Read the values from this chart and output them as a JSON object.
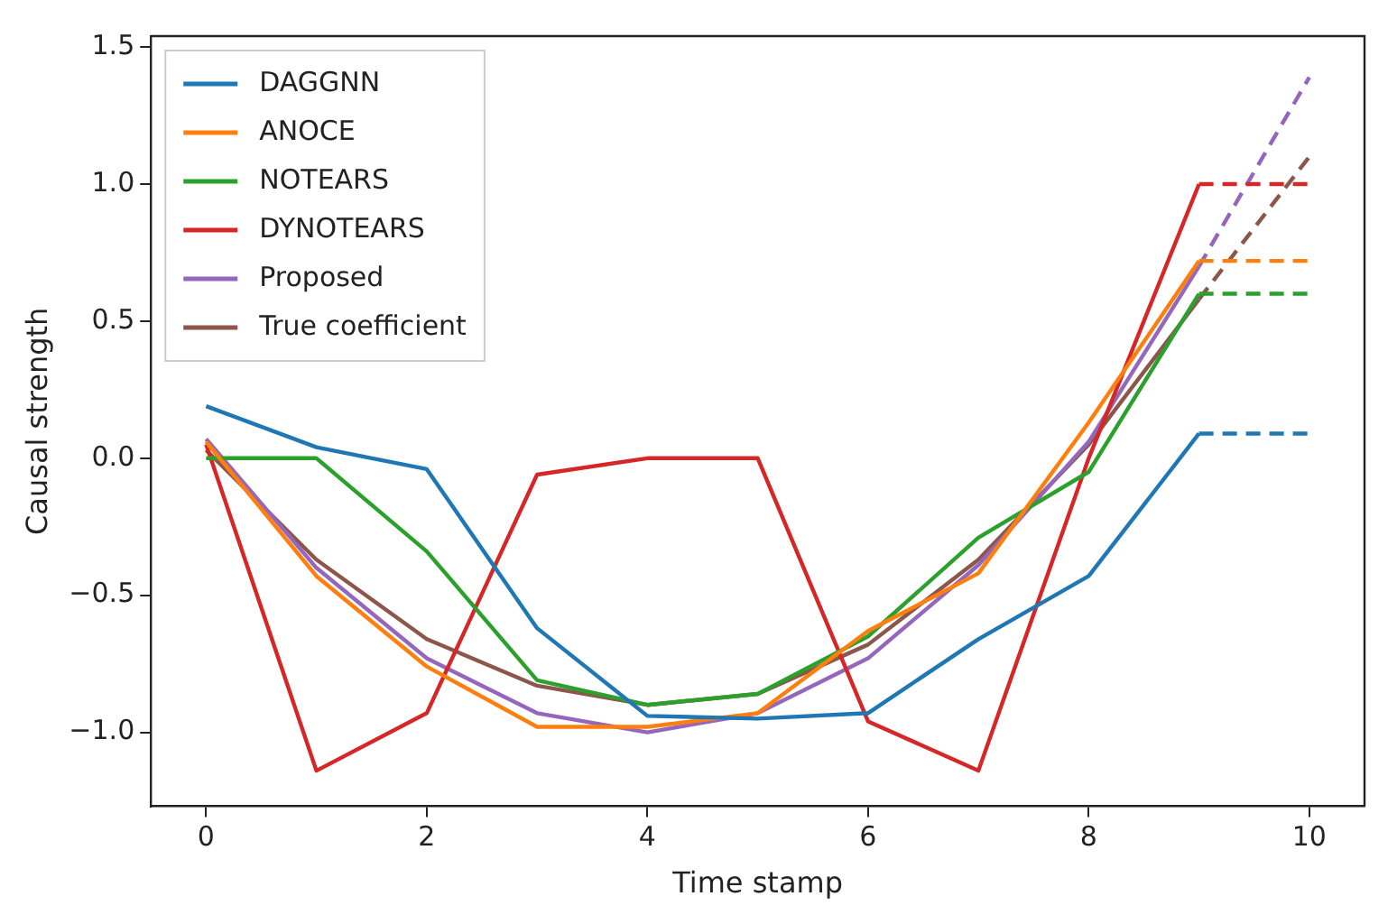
{
  "chart_data": {
    "type": "line",
    "xlabel": "Time stamp",
    "ylabel": "Causal strength",
    "xlim": [
      -0.5,
      10.5
    ],
    "ylim": [
      -1.27,
      1.54
    ],
    "xticks": [
      0,
      2,
      4,
      6,
      8,
      10
    ],
    "yticks": [
      {
        "value": -1,
        "label": "−1.0"
      },
      {
        "value": -0.5,
        "label": "−0.5"
      },
      {
        "value": 0,
        "label": "0.0"
      },
      {
        "value": 0.5,
        "label": "0.5"
      },
      {
        "value": 1,
        "label": "1.0"
      },
      {
        "value": 1.5,
        "label": "1.5"
      }
    ],
    "grid": false,
    "legend": "top left",
    "marker": "none",
    "series": [
      {
        "name": "DAGGNN",
        "color": "#1f77b4",
        "x": [
          0,
          1,
          2,
          3,
          4,
          5,
          6,
          7,
          8,
          9
        ],
        "values": [
          0.19,
          0.04,
          -0.04,
          -0.62,
          -0.94,
          -0.95,
          -0.93,
          -0.66,
          -0.43,
          0.09
        ],
        "line_style": "solid"
      },
      {
        "name": "ANOCE",
        "color": "#ff7f0e",
        "x": [
          0,
          1,
          2,
          3,
          4,
          5,
          6,
          7,
          8,
          9
        ],
        "values": [
          0.06,
          -0.43,
          -0.76,
          -0.98,
          -0.98,
          -0.93,
          -0.63,
          -0.42,
          0.13,
          0.72
        ],
        "line_style": "solid"
      },
      {
        "name": "NOTEARS",
        "color": "#2ca02c",
        "x": [
          0,
          1,
          2,
          3,
          4,
          5,
          6,
          7,
          8,
          9
        ],
        "values": [
          0,
          0,
          -0.34,
          -0.81,
          -0.9,
          -0.86,
          -0.65,
          -0.29,
          -0.05,
          0.6
        ],
        "line_style": "solid"
      },
      {
        "name": "DYNOTEARS",
        "color": "#d62728",
        "x": [
          0,
          1,
          2,
          3,
          4,
          5,
          6,
          7,
          8,
          9
        ],
        "values": [
          0.05,
          -1.14,
          -0.93,
          -0.06,
          0,
          0,
          -0.96,
          -1.14,
          0,
          1.0
        ],
        "line_style": "solid"
      },
      {
        "name": "Proposed",
        "color": "#9467bd",
        "x": [
          0,
          1,
          2,
          3,
          4,
          5,
          6,
          7,
          8,
          9
        ],
        "values": [
          0.07,
          -0.4,
          -0.73,
          -0.93,
          -1.0,
          -0.93,
          -0.73,
          -0.39,
          0.06,
          0.7
        ],
        "line_style": "solid"
      },
      {
        "name": "True coefficient",
        "color": "#8c564b",
        "x": [
          0,
          1,
          2,
          3,
          4,
          5,
          6,
          7,
          8,
          9
        ],
        "values": [
          0.03,
          -0.37,
          -0.66,
          -0.83,
          -0.9,
          -0.86,
          -0.68,
          -0.37,
          0.05,
          0.58
        ],
        "line_style": "solid"
      },
      {
        "color": "#1f77b4",
        "x": [
          9,
          10
        ],
        "values": [
          0.09,
          0.09
        ],
        "line_style": "dashed"
      },
      {
        "color": "#ff7f0e",
        "x": [
          9,
          10
        ],
        "values": [
          0.72,
          0.72
        ],
        "line_style": "dashed"
      },
      {
        "color": "#2ca02c",
        "x": [
          9,
          10
        ],
        "values": [
          0.6,
          0.6
        ],
        "line_style": "dashed"
      },
      {
        "color": "#d62728",
        "x": [
          9,
          10
        ],
        "values": [
          1.0,
          1.0
        ],
        "line_style": "dashed"
      },
      {
        "color": "#9467bd",
        "x": [
          9,
          10
        ],
        "values": [
          0.7,
          1.39
        ],
        "line_style": "dashed"
      },
      {
        "color": "#8c564b",
        "x": [
          9,
          10
        ],
        "values": [
          0.58,
          1.1
        ],
        "line_style": "dashed"
      }
    ]
  }
}
